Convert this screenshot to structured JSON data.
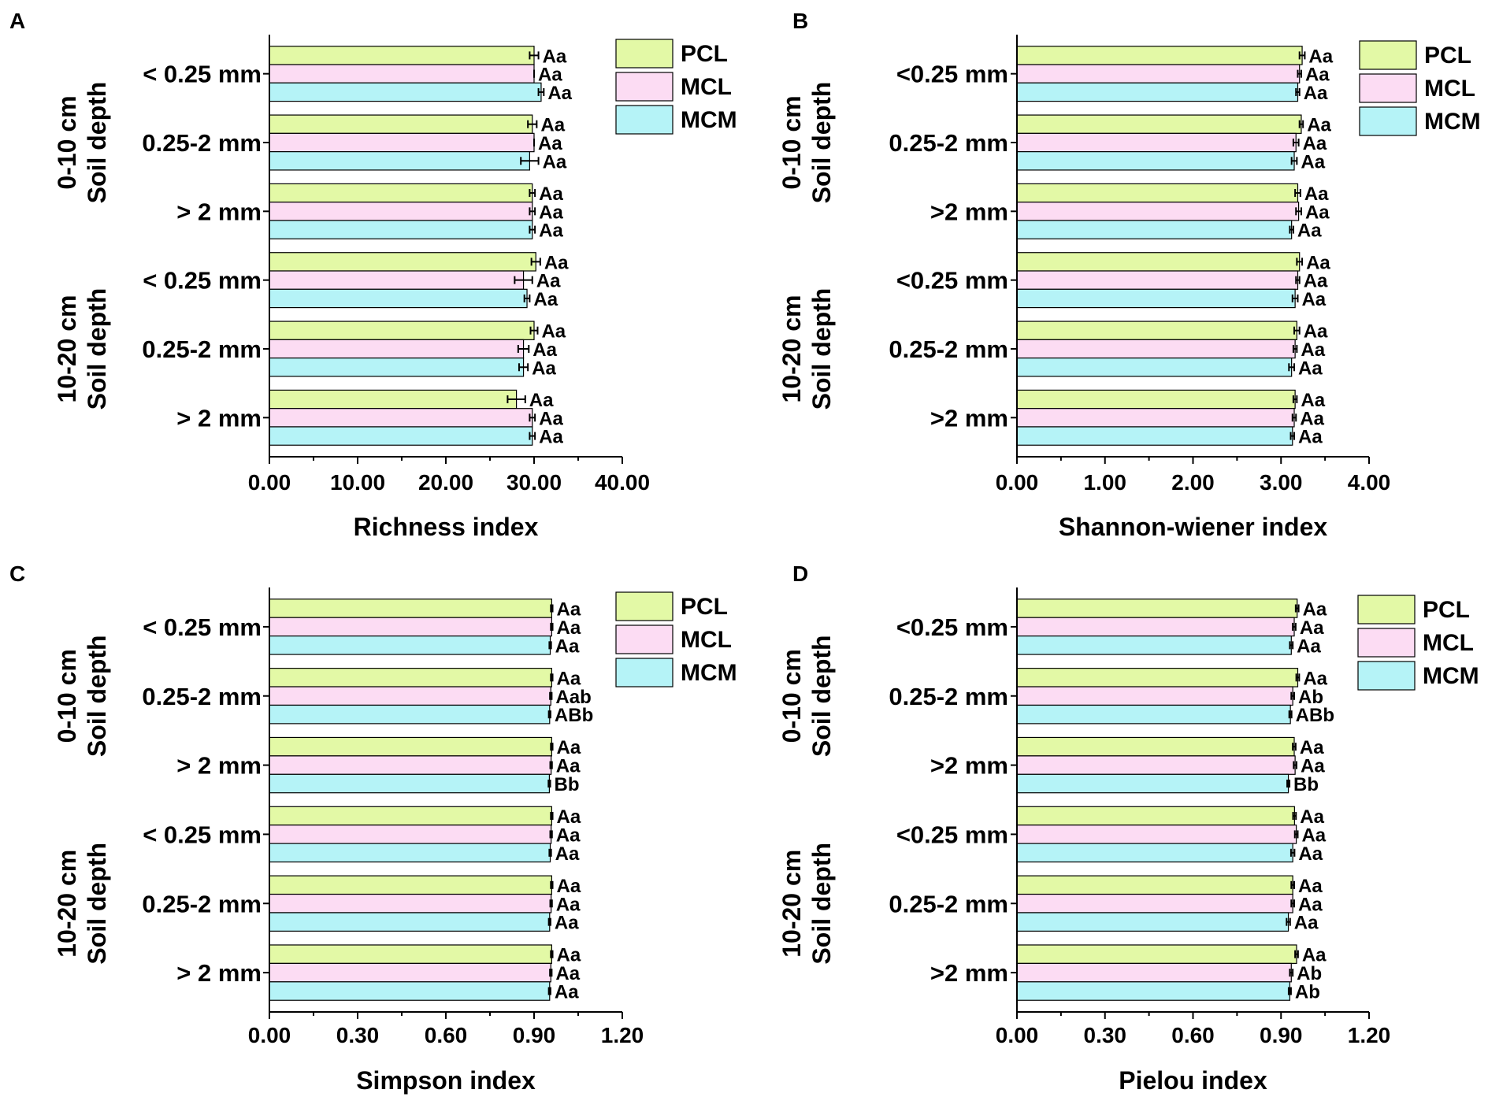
{
  "figure": {
    "series_names": [
      "PCL",
      "MCL",
      "MCM"
    ],
    "colors": {
      "PCL": "#e3f9a6",
      "MCL": "#fcdcf3",
      "MCM": "#b5f3f7",
      "stroke": "#000000"
    },
    "category_labels": [
      "< 0.25 mm",
      "0.25-2 mm",
      "> 2 mm",
      "< 0.25 mm",
      "0.25-2 mm",
      "> 2 mm"
    ],
    "depth_groups": [
      {
        "depth": "0-10 cm",
        "label": "Soil depth"
      },
      {
        "depth": "10-20 cm",
        "label": "Soil depth"
      }
    ]
  },
  "chart_data": [
    {
      "panel": "A",
      "type": "bar",
      "orientation": "horizontal",
      "xlabel": "Richness index",
      "xlim": [
        0,
        40
      ],
      "xticks": [
        "0.00",
        "10.00",
        "20.00",
        "30.00",
        "40.00"
      ],
      "categories": [
        "< 0.25 mm",
        "0.25-2 mm",
        "> 2 mm",
        "< 0.25 mm",
        "0.25-2 mm",
        "> 2 mm"
      ],
      "series": [
        {
          "name": "PCL",
          "values": [
            30.0,
            29.8,
            29.8,
            30.2,
            30.0,
            28.0
          ],
          "errors": [
            0.5,
            0.5,
            0.3,
            0.5,
            0.4,
            1.0
          ],
          "labels": [
            "Aa",
            "Aa",
            "Aa",
            "Aa",
            "Aa",
            "Aa"
          ]
        },
        {
          "name": "MCL",
          "values": [
            30.0,
            30.0,
            29.8,
            28.8,
            28.8,
            29.8
          ],
          "errors": [
            0.0,
            0.0,
            0.3,
            1.0,
            0.6,
            0.3
          ],
          "labels": [
            "Aa",
            "Aa",
            "Aa",
            "Aa",
            "Aa",
            "Aa"
          ]
        },
        {
          "name": "MCM",
          "values": [
            30.8,
            29.5,
            29.8,
            29.2,
            28.8,
            29.8
          ],
          "errors": [
            0.3,
            1.0,
            0.3,
            0.3,
            0.5,
            0.3
          ],
          "labels": [
            "Aa",
            "Aa",
            "Aa",
            "Aa",
            "Aa",
            "Aa"
          ]
        }
      ]
    },
    {
      "panel": "B",
      "type": "bar",
      "orientation": "horizontal",
      "xlabel": "Shannon-wiener index",
      "xlim": [
        0,
        4
      ],
      "xticks": [
        "0.00",
        "1.00",
        "2.00",
        "3.00",
        "4.00"
      ],
      "categories": [
        "<0.25 mm",
        "0.25-2 mm",
        ">2 mm",
        "<0.25 mm",
        "0.25-2 mm",
        ">2 mm"
      ],
      "series": [
        {
          "name": "PCL",
          "values": [
            3.24,
            3.23,
            3.19,
            3.21,
            3.18,
            3.16
          ],
          "errors": [
            0.03,
            0.02,
            0.03,
            0.03,
            0.03,
            0.02
          ],
          "labels": [
            "Aa",
            "Aa",
            "Aa",
            "Aa",
            "Aa",
            "Aa"
          ]
        },
        {
          "name": "MCL",
          "values": [
            3.21,
            3.17,
            3.2,
            3.19,
            3.16,
            3.15
          ],
          "errors": [
            0.02,
            0.03,
            0.03,
            0.02,
            0.02,
            0.02
          ],
          "labels": [
            "Aa",
            "Aa",
            "Aa",
            "Aa",
            "Aa",
            "Aa"
          ]
        },
        {
          "name": "MCM",
          "values": [
            3.19,
            3.15,
            3.12,
            3.16,
            3.12,
            3.13
          ],
          "errors": [
            0.02,
            0.03,
            0.02,
            0.03,
            0.03,
            0.02
          ],
          "labels": [
            "Aa",
            "Aa",
            "Aa",
            "Aa",
            "Aa",
            "Aa"
          ]
        }
      ]
    },
    {
      "panel": "C",
      "type": "bar",
      "orientation": "horizontal",
      "xlabel": "Simpson index",
      "xlim": [
        0,
        1.2
      ],
      "xticks": [
        "0.00",
        "0.30",
        "0.60",
        "0.90",
        "1.20"
      ],
      "categories": [
        "< 0.25 mm",
        "0.25-2 mm",
        "> 2 mm",
        "< 0.25 mm",
        "0.25-2 mm",
        "> 2 mm"
      ],
      "series": [
        {
          "name": "PCL",
          "values": [
            0.96,
            0.96,
            0.96,
            0.96,
            0.96,
            0.96
          ],
          "errors": [
            0.003,
            0.003,
            0.003,
            0.003,
            0.003,
            0.003
          ],
          "labels": [
            "Aa",
            "Aa",
            "Aa",
            "Aa",
            "Aa",
            "Aa"
          ]
        },
        {
          "name": "MCL",
          "values": [
            0.96,
            0.957,
            0.958,
            0.958,
            0.958,
            0.957
          ],
          "errors": [
            0.003,
            0.003,
            0.003,
            0.003,
            0.003,
            0.003
          ],
          "labels": [
            "Aa",
            "Aab",
            "Aa",
            "Aa",
            "Aa",
            "Aa"
          ]
        },
        {
          "name": "MCM",
          "values": [
            0.955,
            0.953,
            0.952,
            0.955,
            0.953,
            0.953
          ],
          "errors": [
            0.003,
            0.003,
            0.003,
            0.003,
            0.003,
            0.003
          ],
          "labels": [
            "Aa",
            "ABb",
            "Bb",
            "Aa",
            "Aa",
            "Aa"
          ]
        }
      ]
    },
    {
      "panel": "D",
      "type": "bar",
      "orientation": "horizontal",
      "xlabel": "Pielou index",
      "xlim": [
        0,
        1.2
      ],
      "xticks": [
        "0.00",
        "0.30",
        "0.60",
        "0.90",
        "1.20"
      ],
      "categories": [
        "<0.25 mm",
        "0.25-2 mm",
        ">2 mm",
        "<0.25 mm",
        "0.25-2 mm",
        ">2 mm"
      ],
      "series": [
        {
          "name": "PCL",
          "values": [
            0.955,
            0.957,
            0.945,
            0.946,
            0.94,
            0.953
          ],
          "errors": [
            0.005,
            0.005,
            0.005,
            0.005,
            0.005,
            0.005
          ],
          "labels": [
            "Aa",
            "Aa",
            "Aa",
            "Aa",
            "Aa",
            "Aa"
          ]
        },
        {
          "name": "MCL",
          "values": [
            0.945,
            0.94,
            0.948,
            0.952,
            0.94,
            0.935
          ],
          "errors": [
            0.005,
            0.005,
            0.005,
            0.005,
            0.005,
            0.005
          ],
          "labels": [
            "Aa",
            "Ab",
            "Aa",
            "Aa",
            "Aa",
            "Ab"
          ]
        },
        {
          "name": "MCM",
          "values": [
            0.935,
            0.932,
            0.925,
            0.94,
            0.925,
            0.93
          ],
          "errors": [
            0.005,
            0.004,
            0.004,
            0.006,
            0.006,
            0.004
          ],
          "labels": [
            "Aa",
            "ABb",
            "Bb",
            "Aa",
            "Aa",
            "Ab"
          ]
        }
      ]
    }
  ]
}
